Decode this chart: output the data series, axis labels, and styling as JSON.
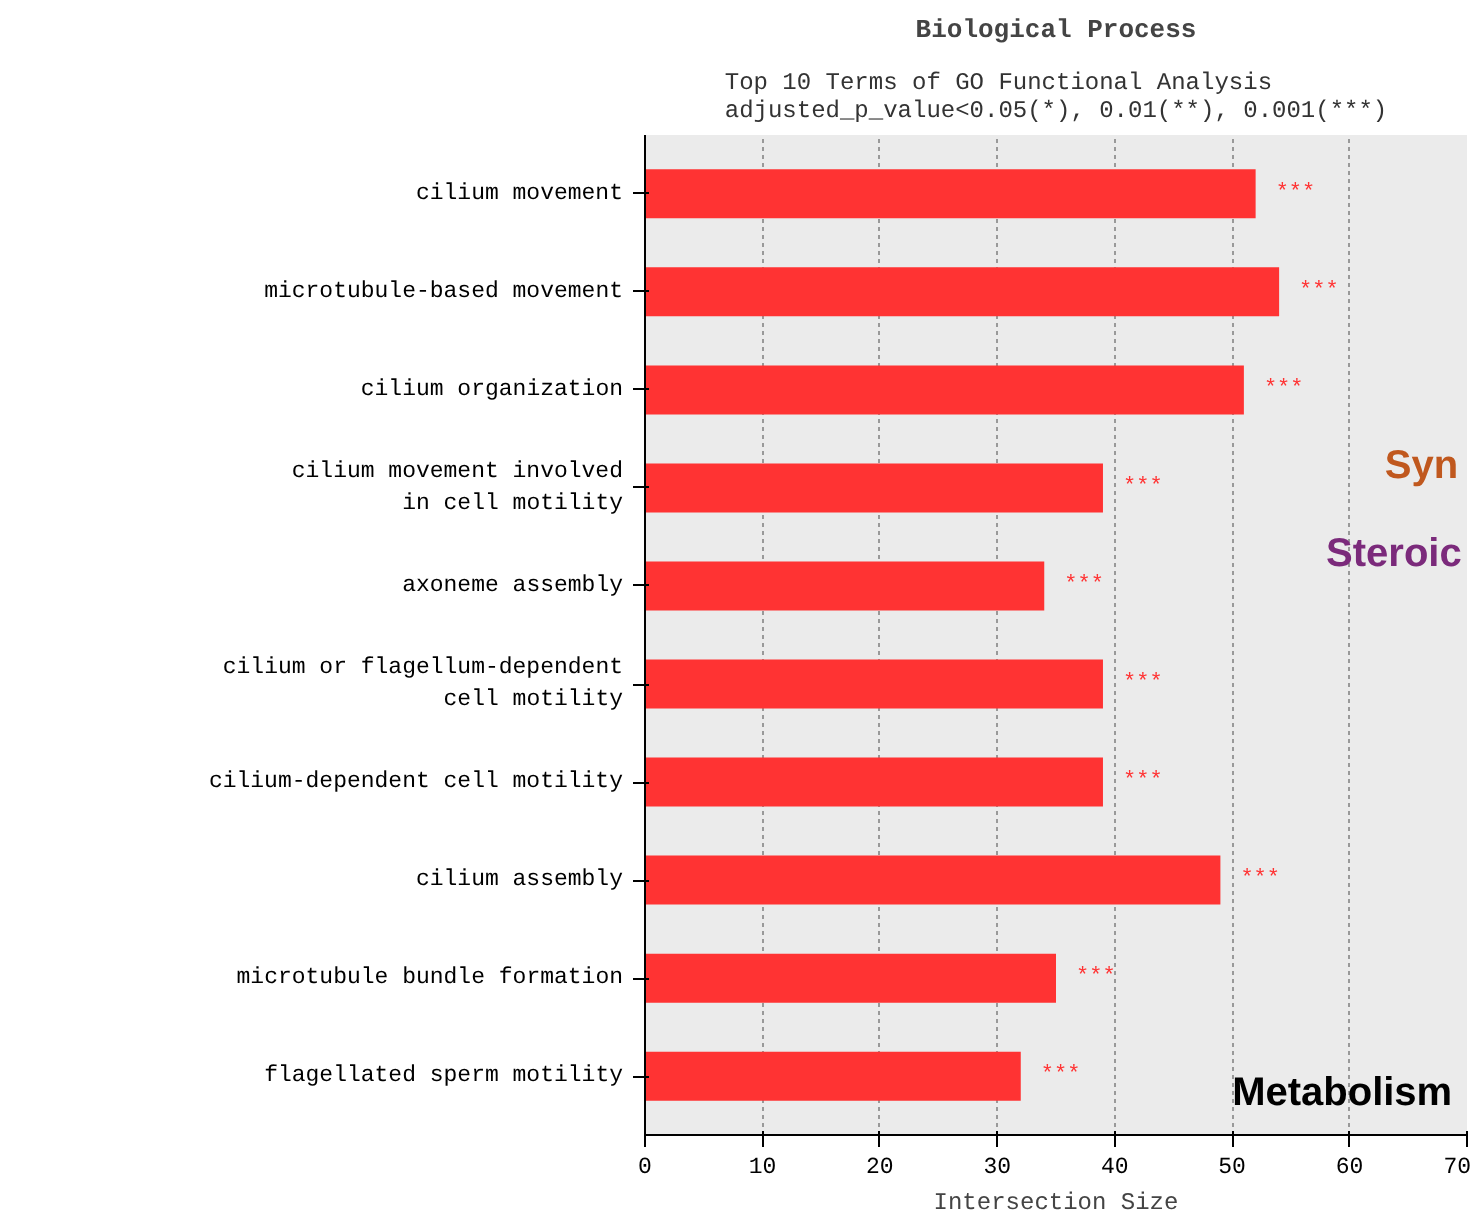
{
  "chart_data": {
    "type": "bar",
    "orientation": "horizontal",
    "title": "Biological Process",
    "subtitle": "Top 10 Terms of GO Functional Analysis\nadjusted_p_value<0.05(*), 0.01(**), 0.001(***)",
    "xlabel": "Intersection Size",
    "categories": [
      "cilium movement",
      "microtubule-based movement",
      "cilium organization",
      "cilium movement involved\nin cell motility",
      "axoneme assembly",
      "cilium or flagellum-dependent\ncell motility",
      "cilium-dependent cell motility",
      "cilium assembly",
      "microtubule bundle formation",
      "flagellated sperm motility"
    ],
    "values": [
      52,
      54,
      51,
      39,
      34,
      39,
      39,
      49,
      35,
      32
    ],
    "value_labels": [
      "***",
      "***",
      "***",
      "***",
      "***",
      "***",
      "***",
      "***",
      "***",
      "***"
    ],
    "color": "#ff3333",
    "xlim": [
      0,
      70
    ],
    "xticks": [
      0,
      10,
      20,
      30,
      40,
      50,
      60,
      70
    ],
    "grid": "x",
    "annotations": [
      "Syn",
      "Steroic",
      "Metabolism"
    ]
  }
}
